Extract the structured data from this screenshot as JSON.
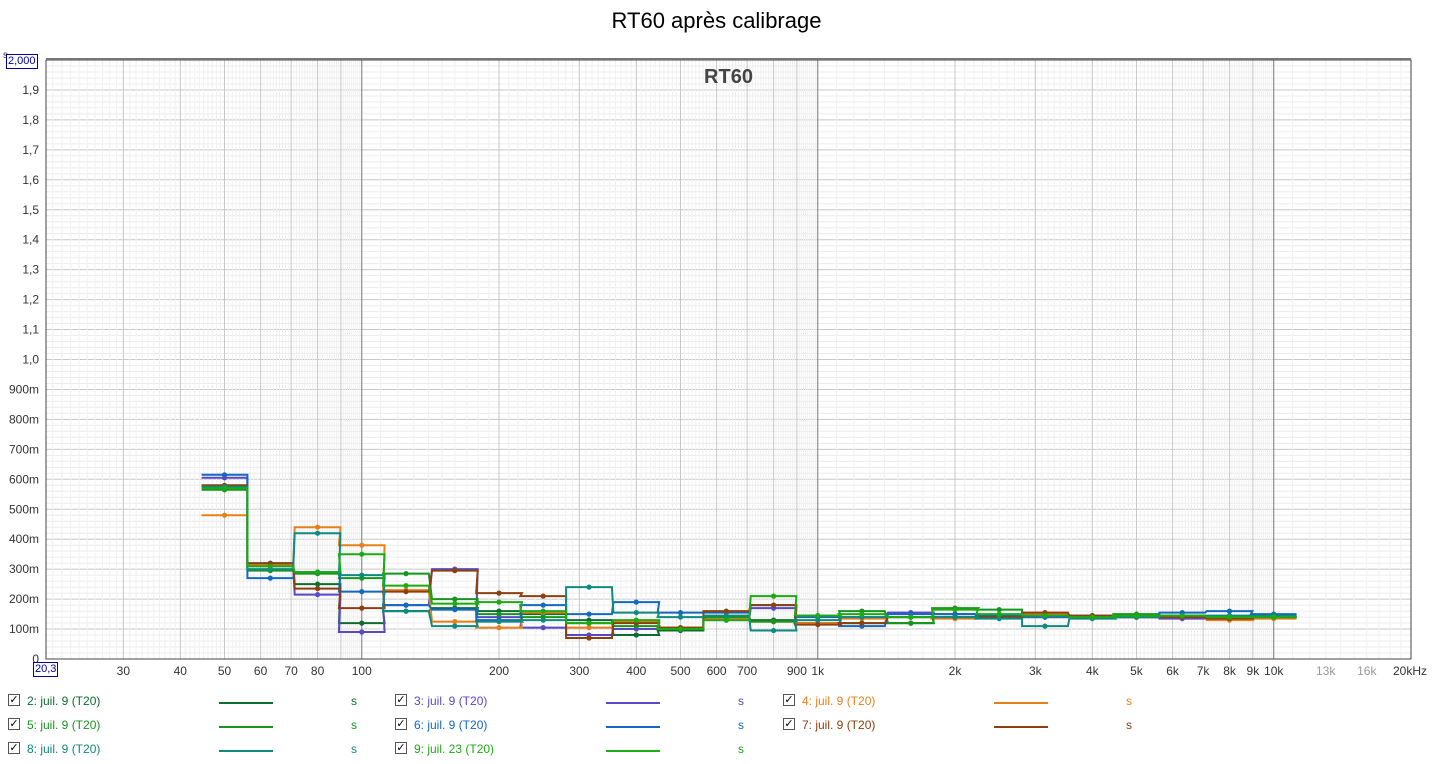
{
  "chart_data": {
    "type": "line",
    "title": "RT60 après calibrage",
    "inner_title": "RT60",
    "y_unit": "s",
    "x_unit": "kHz",
    "x_scale": "log",
    "xlim": [
      20.3,
      20000
    ],
    "ylim": [
      0,
      2.0
    ],
    "y_top_label": "2,000",
    "x_left_label": "20,3",
    "y_tick_labels": [
      {
        "v": 0.1,
        "t": "100m"
      },
      {
        "v": 0.2,
        "t": "200m"
      },
      {
        "v": 0.3,
        "t": "300m"
      },
      {
        "v": 0.4,
        "t": "400m"
      },
      {
        "v": 0.5,
        "t": "500m"
      },
      {
        "v": 0.6,
        "t": "600m"
      },
      {
        "v": 0.7,
        "t": "700m"
      },
      {
        "v": 0.8,
        "t": "800m"
      },
      {
        "v": 0.9,
        "t": "900m"
      },
      {
        "v": 1.0,
        "t": "1,0"
      },
      {
        "v": 1.1,
        "t": "1,1"
      },
      {
        "v": 1.2,
        "t": "1,2"
      },
      {
        "v": 1.3,
        "t": "1,3"
      },
      {
        "v": 1.4,
        "t": "1,4"
      },
      {
        "v": 1.5,
        "t": "1,5"
      },
      {
        "v": 1.6,
        "t": "1,6"
      },
      {
        "v": 1.7,
        "t": "1,7"
      },
      {
        "v": 1.8,
        "t": "1,8"
      },
      {
        "v": 1.9,
        "t": "1,9"
      }
    ],
    "y_zero_label": "0",
    "x_tick_labels": [
      {
        "v": 30,
        "t": "30"
      },
      {
        "v": 40,
        "t": "40"
      },
      {
        "v": 50,
        "t": "50"
      },
      {
        "v": 60,
        "t": "60"
      },
      {
        "v": 70,
        "t": "70"
      },
      {
        "v": 80,
        "t": "80"
      },
      {
        "v": 100,
        "t": "100"
      },
      {
        "v": 200,
        "t": "200"
      },
      {
        "v": 300,
        "t": "300"
      },
      {
        "v": 400,
        "t": "400"
      },
      {
        "v": 500,
        "t": "500"
      },
      {
        "v": 600,
        "t": "600"
      },
      {
        "v": 700,
        "t": "700"
      },
      {
        "v": 900,
        "t": "900"
      },
      {
        "v": 1000,
        "t": "1k"
      },
      {
        "v": 2000,
        "t": "2k"
      },
      {
        "v": 3000,
        "t": "3k"
      },
      {
        "v": 4000,
        "t": "4k"
      },
      {
        "v": 5000,
        "t": "5k"
      },
      {
        "v": 6000,
        "t": "6k"
      },
      {
        "v": 7000,
        "t": "7k"
      },
      {
        "v": 8000,
        "t": "8k"
      },
      {
        "v": 9000,
        "t": "9k"
      },
      {
        "v": 10000,
        "t": "10k"
      },
      {
        "v": 13000,
        "t": "13k"
      },
      {
        "v": 16000,
        "t": "16k"
      },
      {
        "v": 20000,
        "t": "20kHz"
      }
    ],
    "bands": [
      50,
      63,
      80,
      100,
      125,
      160,
      200,
      250,
      315,
      400,
      500,
      630,
      800,
      1000,
      1250,
      1600,
      2000,
      2500,
      3150,
      4000,
      5000,
      6300,
      8000,
      10000
    ],
    "series": [
      {
        "name": "2: juil. 9 (T20)",
        "color": "#0b6e2e",
        "values": [
          0.575,
          0.32,
          0.25,
          0.12,
          0.16,
          0.17,
          0.16,
          0.15,
          0.13,
          0.08,
          0.095,
          0.14,
          0.13,
          0.12,
          0.12,
          0.12,
          0.15,
          0.14,
          0.145,
          0.14,
          0.14,
          0.14,
          0.14,
          0.14
        ]
      },
      {
        "name": "3: juil. 9 (T20)",
        "color": "#5a48c8",
        "values": [
          0.605,
          0.31,
          0.215,
          0.09,
          0.18,
          0.3,
          0.14,
          0.105,
          0.08,
          0.1,
          0.1,
          0.13,
          0.17,
          0.12,
          0.14,
          0.155,
          0.14,
          0.14,
          0.14,
          0.145,
          0.14,
          0.135,
          0.135,
          0.14
        ]
      },
      {
        "name": "4: juil. 9 (T20)",
        "color": "#e8801a",
        "values": [
          0.48,
          0.315,
          0.44,
          0.38,
          0.23,
          0.125,
          0.105,
          0.155,
          0.105,
          0.125,
          0.105,
          0.135,
          0.125,
          0.12,
          0.135,
          0.14,
          0.135,
          0.145,
          0.15,
          0.14,
          0.14,
          0.14,
          0.13,
          0.135
        ]
      },
      {
        "name": "5: juil. 9 (T20)",
        "color": "#16961e",
        "values": [
          0.565,
          0.295,
          0.285,
          0.27,
          0.285,
          0.2,
          0.15,
          0.14,
          0.12,
          0.11,
          0.1,
          0.14,
          0.125,
          0.145,
          0.16,
          0.12,
          0.17,
          0.165,
          0.145,
          0.14,
          0.15,
          0.145,
          0.14,
          0.14
        ]
      },
      {
        "name": "6: juil. 9 (T20)",
        "color": "#1468c0",
        "values": [
          0.615,
          0.27,
          0.29,
          0.225,
          0.18,
          0.165,
          0.13,
          0.18,
          0.15,
          0.19,
          0.155,
          0.155,
          0.18,
          0.14,
          0.11,
          0.15,
          0.15,
          0.145,
          0.14,
          0.14,
          0.14,
          0.155,
          0.16,
          0.15
        ]
      },
      {
        "name": "7: juil. 9 (T20)",
        "color": "#8c4010",
        "values": [
          0.58,
          0.32,
          0.235,
          0.17,
          0.225,
          0.295,
          0.22,
          0.21,
          0.07,
          0.12,
          0.105,
          0.16,
          0.18,
          0.115,
          0.12,
          0.14,
          0.14,
          0.14,
          0.155,
          0.145,
          0.14,
          0.14,
          0.135,
          0.14
        ]
      },
      {
        "name": "8: juil. 9 (T20)",
        "color": "#0e8a80",
        "values": [
          0.575,
          0.3,
          0.42,
          0.28,
          0.16,
          0.11,
          0.125,
          0.13,
          0.24,
          0.155,
          0.14,
          0.145,
          0.095,
          0.13,
          0.14,
          0.14,
          0.14,
          0.135,
          0.11,
          0.135,
          0.14,
          0.145,
          0.145,
          0.145
        ]
      },
      {
        "name": "9: juil. 23 (T20)",
        "color": "#1eaa14",
        "values": [
          0.57,
          0.31,
          0.29,
          0.35,
          0.245,
          0.185,
          0.19,
          0.16,
          0.12,
          0.13,
          0.1,
          0.13,
          0.21,
          0.145,
          0.15,
          0.14,
          0.165,
          0.15,
          0.145,
          0.14,
          0.145,
          0.145,
          0.14,
          0.14
        ]
      }
    ]
  },
  "legend": {
    "unit": "s",
    "check_mark": "✓",
    "items": [
      {
        "label": "2: juil. 9 (T20)",
        "color": "#0b6e2e"
      },
      {
        "label": "3: juil. 9 (T20)",
        "color": "#5a48c8"
      },
      {
        "label": "4: juil. 9 (T20)",
        "color": "#e8801a"
      },
      {
        "label": "5: juil. 9 (T20)",
        "color": "#16961e"
      },
      {
        "label": "6: juil. 9 (T20)",
        "color": "#1468c0"
      },
      {
        "label": "7: juil. 9 (T20)",
        "color": "#8c4010"
      },
      {
        "label": "8: juil. 9 (T20)",
        "color": "#0e8a80"
      },
      {
        "label": "9: juil. 23 (T20)",
        "color": "#1eaa14"
      }
    ]
  }
}
